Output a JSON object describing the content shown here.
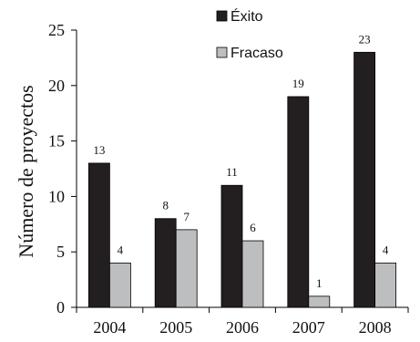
{
  "chart_data": {
    "type": "bar",
    "categories": [
      "2004",
      "2005",
      "2006",
      "2007",
      "2008"
    ],
    "series": [
      {
        "name": "Éxito",
        "values": [
          13,
          8,
          11,
          19,
          23
        ],
        "color": "#231f20"
      },
      {
        "name": "Fracaso",
        "values": [
          4,
          7,
          6,
          1,
          4
        ],
        "color": "#bcbec0"
      }
    ],
    "ylabel": "Número de proyectos",
    "xlabel": "",
    "title": "",
    "ylim": [
      0,
      25
    ],
    "yticks": [
      0,
      5,
      10,
      15,
      20,
      25
    ],
    "grid": false,
    "legend": "top-right",
    "data_labels": true
  }
}
